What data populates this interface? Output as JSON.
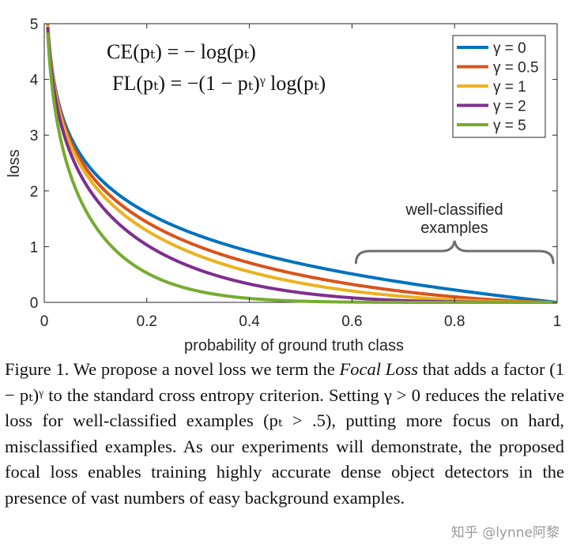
{
  "chart_data": {
    "type": "line",
    "xlabel": "probability of ground truth class",
    "ylabel": "loss",
    "xlim": [
      0,
      1
    ],
    "ylim": [
      0,
      5
    ],
    "x_ticks": [
      "0",
      "0.2",
      "0.4",
      "0.6",
      "0.8",
      "1"
    ],
    "x_tick_values": [
      0,
      0.2,
      0.4,
      0.6,
      0.8,
      1
    ],
    "y_ticks": [
      "0",
      "1",
      "2",
      "3",
      "4",
      "5"
    ],
    "y_tick_values": [
      0,
      1,
      2,
      3,
      4,
      5
    ],
    "formula": "loss = -(1 - p)^gamma * log(p)",
    "series": [
      {
        "name": "γ = 0",
        "gamma": 0,
        "color": "#0072BD",
        "x": [
          0.05,
          0.1,
          0.2,
          0.4,
          0.6,
          0.8,
          1.0
        ],
        "values": [
          3.0,
          2.3,
          1.61,
          0.92,
          0.51,
          0.22,
          0.0
        ]
      },
      {
        "name": "γ = 0.5",
        "gamma": 0.5,
        "color": "#D95319",
        "x": [
          0.05,
          0.1,
          0.2,
          0.4,
          0.6,
          0.8,
          1.0
        ],
        "values": [
          2.92,
          2.18,
          1.44,
          0.71,
          0.32,
          0.1,
          0.0
        ]
      },
      {
        "name": "γ = 1",
        "gamma": 1,
        "color": "#EDB120",
        "x": [
          0.05,
          0.1,
          0.2,
          0.4,
          0.6,
          0.8,
          1.0
        ],
        "values": [
          2.85,
          2.07,
          1.29,
          0.55,
          0.2,
          0.04,
          0.0
        ]
      },
      {
        "name": "γ = 2",
        "gamma": 2,
        "color": "#7E2F8E",
        "x": [
          0.05,
          0.1,
          0.2,
          0.4,
          0.6,
          0.8,
          1.0
        ],
        "values": [
          2.7,
          1.87,
          1.03,
          0.33,
          0.08,
          0.01,
          0.0
        ]
      },
      {
        "name": "γ = 5",
        "gamma": 5,
        "color": "#77AC30",
        "x": [
          0.05,
          0.1,
          0.2,
          0.4,
          0.6,
          0.8,
          1.0
        ],
        "values": [
          2.32,
          1.36,
          0.53,
          0.07,
          0.01,
          0.0,
          0.0
        ]
      }
    ],
    "annotations": {
      "brace_label_line1": "well-classified",
      "brace_label_line2": "examples",
      "brace_range": [
        0.6,
        1.0
      ]
    },
    "legend_position": "top-right"
  },
  "equations": {
    "ce": "CE(pₜ) = − log(pₜ)",
    "fl": "FL(pₜ) = −(1 − pₜ)ᵞ log(pₜ)"
  },
  "caption": {
    "p1": "Figure 1. We propose a novel loss we term the ",
    "focal_loss": "Focal Loss",
    "p2": " that adds a factor (1 − pₜ)ᵞ to the standard cross entropy criterion. Setting γ > 0 reduces the relative loss for well-classified examples (pₜ > .5), putting more focus on hard, misclassified examples. As our experiments will demonstrate, the proposed focal loss enables training highly accurate dense object detectors in the presence of vast numbers of easy background examples."
  },
  "watermark": "知乎 @lynne阿黎"
}
